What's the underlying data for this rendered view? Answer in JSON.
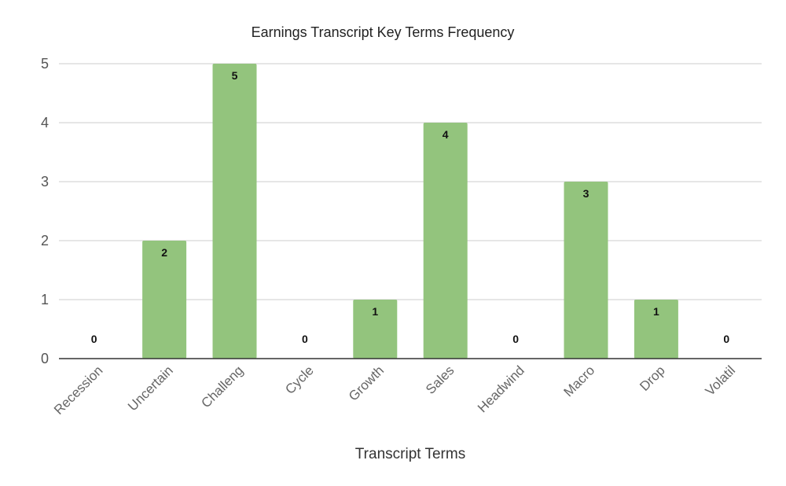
{
  "chart_data": {
    "type": "bar",
    "title": "Earnings Transcript Key Terms Frequency",
    "xlabel": "Transcript Terms",
    "ylabel": "",
    "categories": [
      "Recession",
      "Uncertain",
      "Challeng",
      "Cycle",
      "Growth",
      "Sales",
      "Headwind",
      "Macro",
      "Drop",
      "Volatil"
    ],
    "values": [
      0,
      2,
      5,
      0,
      1,
      4,
      0,
      3,
      1,
      0
    ],
    "data_labels": [
      "0",
      "2",
      "5",
      "0",
      "1",
      "4",
      "0",
      "3",
      "1",
      "0"
    ],
    "ylim": [
      0,
      5
    ],
    "yticks": [
      "0",
      "1",
      "2",
      "3",
      "4",
      "5"
    ],
    "grid": true,
    "legend": "none",
    "bar_color": "#93c47d"
  }
}
